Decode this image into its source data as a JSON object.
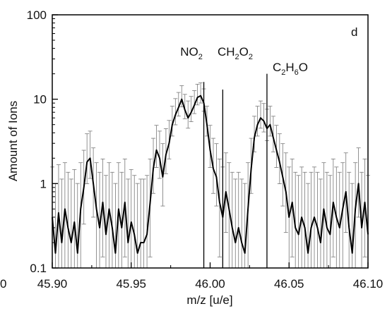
{
  "chart_data": {
    "type": "line",
    "panel_label": "d",
    "xlabel": "m/z [u/e]",
    "ylabel": "Amount of Ions",
    "xlim": [
      45.9,
      46.1
    ],
    "ylim": [
      0.1,
      100
    ],
    "y_scale": "log",
    "x_ticks": [
      {
        "value": 45.9,
        "label": "45.90"
      },
      {
        "value": 45.95,
        "label": "45.95"
      },
      {
        "value": 46.0,
        "label": "46.00"
      },
      {
        "value": 46.05,
        "label": "46.05"
      },
      {
        "value": 46.1,
        "label": "46.10"
      }
    ],
    "y_ticks": [
      {
        "value": 0.1,
        "label": "0.1"
      },
      {
        "value": 1,
        "label": "1"
      },
      {
        "value": 10,
        "label": "10"
      },
      {
        "value": 100,
        "label": "100"
      }
    ],
    "clipped_left_label": "0",
    "peak_markers": [
      {
        "x": 46.008,
        "top": 13,
        "label_main": "NO",
        "label_sub": "2",
        "label_tail": "",
        "parts": [
          [
            "NO",
            ""
          ],
          [
            "2",
            "sub"
          ]
        ]
      },
      {
        "x": 45.996,
        "top": 16,
        "parts": [
          [
            "CH",
            ""
          ],
          [
            "2",
            "sub"
          ],
          [
            "O",
            ""
          ],
          [
            "2",
            "sub"
          ]
        ]
      },
      {
        "x": 46.036,
        "top": 20,
        "parts": [
          [
            "C",
            ""
          ],
          [
            "2",
            "sub"
          ],
          [
            "H",
            ""
          ],
          [
            "6",
            "sub"
          ],
          [
            "O",
            ""
          ]
        ]
      }
    ],
    "series": [
      {
        "x": [
          45.9,
          45.902,
          45.904,
          45.906,
          45.908,
          45.91,
          45.912,
          45.914,
          45.916,
          45.918,
          45.92,
          45.922,
          45.924,
          45.926,
          45.928,
          45.93,
          45.932,
          45.934,
          45.936,
          45.938,
          45.94,
          45.942,
          45.944,
          45.946,
          45.948,
          45.95,
          45.952,
          45.954,
          45.956,
          45.958,
          45.96,
          45.962,
          45.964,
          45.966,
          45.968,
          45.97,
          45.972,
          45.974,
          45.976,
          45.978,
          45.98,
          45.982,
          45.984,
          45.986,
          45.988,
          45.99,
          45.992,
          45.994,
          45.996,
          45.998,
          46.0,
          46.002,
          46.004,
          46.006,
          46.008,
          46.01,
          46.012,
          46.014,
          46.016,
          46.018,
          46.02,
          46.022,
          46.024,
          46.026,
          46.028,
          46.03,
          46.032,
          46.034,
          46.036,
          46.038,
          46.04,
          46.042,
          46.044,
          46.046,
          46.048,
          46.05,
          46.052,
          46.054,
          46.056,
          46.058,
          46.06,
          46.062,
          46.064,
          46.066,
          46.068,
          46.07,
          46.072,
          46.074,
          46.076,
          46.078,
          46.08,
          46.082,
          46.084,
          46.086,
          46.088,
          46.09,
          46.092,
          46.094,
          46.096,
          46.098,
          46.1
        ],
        "y": [
          0.4,
          0.15,
          0.45,
          0.2,
          0.5,
          0.3,
          0.2,
          0.35,
          0.15,
          0.5,
          0.9,
          1.8,
          2.0,
          1.0,
          0.5,
          0.3,
          0.6,
          0.25,
          0.5,
          0.3,
          0.15,
          0.5,
          0.3,
          0.6,
          0.2,
          0.35,
          0.25,
          0.15,
          0.2,
          0.2,
          0.25,
          0.6,
          1.5,
          2.5,
          2.0,
          1.2,
          2.2,
          3.0,
          5.0,
          6.5,
          8.0,
          10.0,
          7.5,
          6.0,
          7.0,
          8.5,
          10.5,
          11.0,
          9.0,
          5.0,
          2.5,
          1.5,
          1.2,
          0.6,
          0.4,
          0.8,
          0.5,
          0.3,
          0.2,
          0.3,
          0.2,
          0.15,
          0.5,
          1.5,
          3.5,
          5.0,
          6.0,
          5.5,
          4.5,
          5.0,
          3.5,
          2.5,
          1.8,
          1.2,
          0.8,
          0.4,
          0.6,
          0.3,
          0.25,
          0.4,
          0.3,
          0.15,
          0.3,
          0.4,
          0.3,
          0.2,
          0.5,
          0.3,
          0.25,
          0.6,
          0.4,
          0.3,
          0.5,
          0.8,
          0.3,
          0.15,
          0.5,
          1.0,
          0.3,
          0.6,
          0.25
        ]
      }
    ]
  }
}
